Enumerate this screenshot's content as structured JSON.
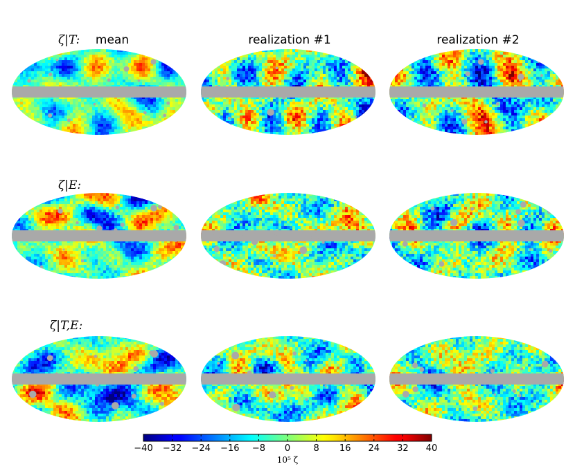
{
  "chart_data": {
    "type": "heatmap",
    "description_kind": "mollweide-sky-maps",
    "columns": [
      "mean",
      "realization #1",
      "realization #2"
    ],
    "rows": [
      "ζ|T:",
      "ζ|E:",
      "ζ|T,E:"
    ],
    "colorbar": {
      "label": "10⁵ ζ",
      "min": -40,
      "max": 40,
      "ticks": [
        "−40",
        "−32",
        "−24",
        "−16",
        "−8",
        "0",
        "8",
        "16",
        "24",
        "32",
        "40"
      ],
      "tick_values": [
        -40,
        -32,
        -24,
        -16,
        -8,
        0,
        8,
        16,
        24,
        32,
        40
      ],
      "colormap": "jet"
    },
    "mask_color": "#a9a9a9",
    "maps": [
      {
        "row": 0,
        "col": 0,
        "noise_amplitude": 0.45,
        "seed": 11
      },
      {
        "row": 0,
        "col": 1,
        "noise_amplitude": 0.85,
        "seed": 23
      },
      {
        "row": 0,
        "col": 2,
        "noise_amplitude": 0.85,
        "seed": 37
      },
      {
        "row": 1,
        "col": 0,
        "noise_amplitude": 0.55,
        "seed": 41
      },
      {
        "row": 1,
        "col": 1,
        "noise_amplitude": 0.9,
        "seed": 53
      },
      {
        "row": 1,
        "col": 2,
        "noise_amplitude": 0.9,
        "seed": 67
      },
      {
        "row": 2,
        "col": 0,
        "noise_amplitude": 0.6,
        "seed": 71
      },
      {
        "row": 2,
        "col": 1,
        "noise_amplitude": 0.8,
        "seed": 83
      },
      {
        "row": 2,
        "col": 2,
        "noise_amplitude": 0.85,
        "seed": 97
      }
    ]
  }
}
